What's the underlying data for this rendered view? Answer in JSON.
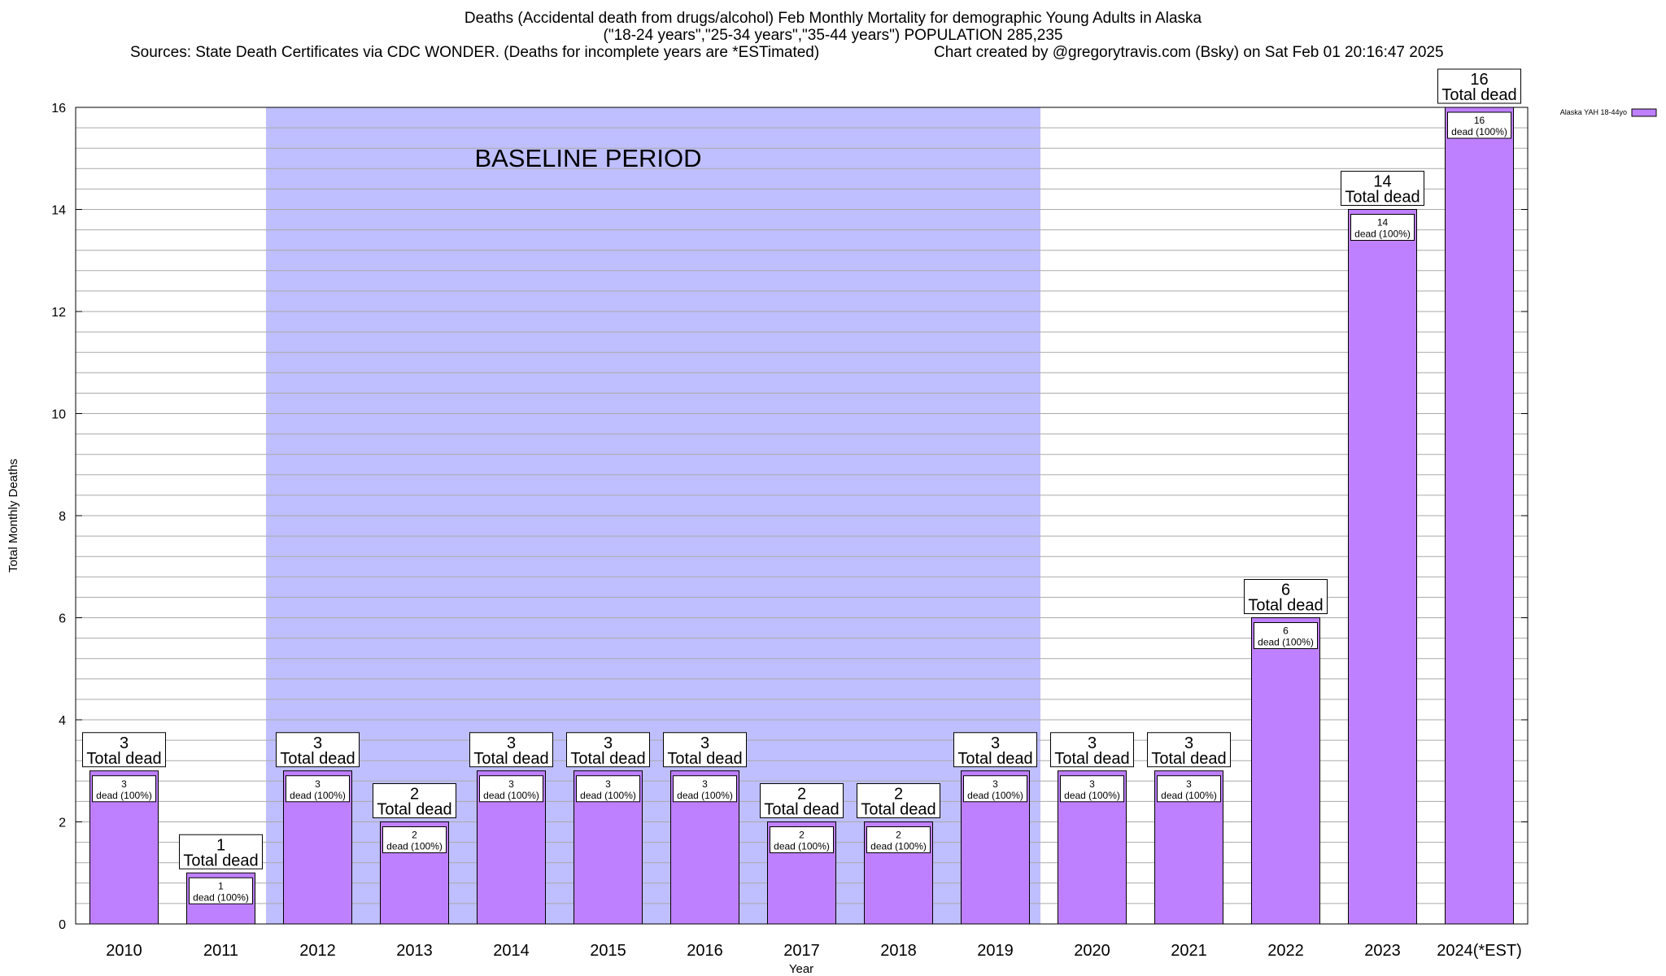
{
  "title": {
    "line1": "Deaths (Accidental death from drugs/alcohol) Feb Monthly Mortality for demographic Young Adults in Alaska",
    "line2": "(\"18-24 years\",\"25-34 years\",\"35-44 years\") POPULATION 285,235",
    "sources": "Sources: State Death Certificates via CDC WONDER. (Deaths for incomplete years are *ESTimated)",
    "credit": "Chart created by @gregorytravis.com (Bsky) on Sat Feb 01 20:16:47 2025"
  },
  "chart_data": {
    "type": "bar",
    "categories": [
      "2010",
      "2011",
      "2012",
      "2013",
      "2014",
      "2015",
      "2016",
      "2017",
      "2018",
      "2019",
      "2020",
      "2021",
      "2022",
      "2023",
      "2024(*EST)"
    ],
    "series": [
      {
        "name": "Alaska YAH 18-44yo",
        "values": [
          3,
          1,
          3,
          2,
          3,
          3,
          3,
          2,
          2,
          3,
          3,
          3,
          6,
          14,
          16
        ]
      }
    ],
    "xlabel": "Year",
    "ylabel": "Total Monthly Deaths",
    "ylim": [
      0,
      16
    ],
    "yticks": [
      0,
      2,
      4,
      6,
      8,
      10,
      12,
      14,
      16
    ],
    "minor_grid_step": 0.4,
    "grid": true,
    "legend_position": "top-right",
    "baseline_period": {
      "label": "BASELINE PERIOD",
      "from": "2012",
      "to": "2019"
    },
    "total_label_text": "Total dead",
    "inner_label_text": "dead (100%)",
    "colors": {
      "bar": "#bf80ff",
      "baseline": "#bfbfff",
      "grid": "#aaaaaa"
    }
  }
}
